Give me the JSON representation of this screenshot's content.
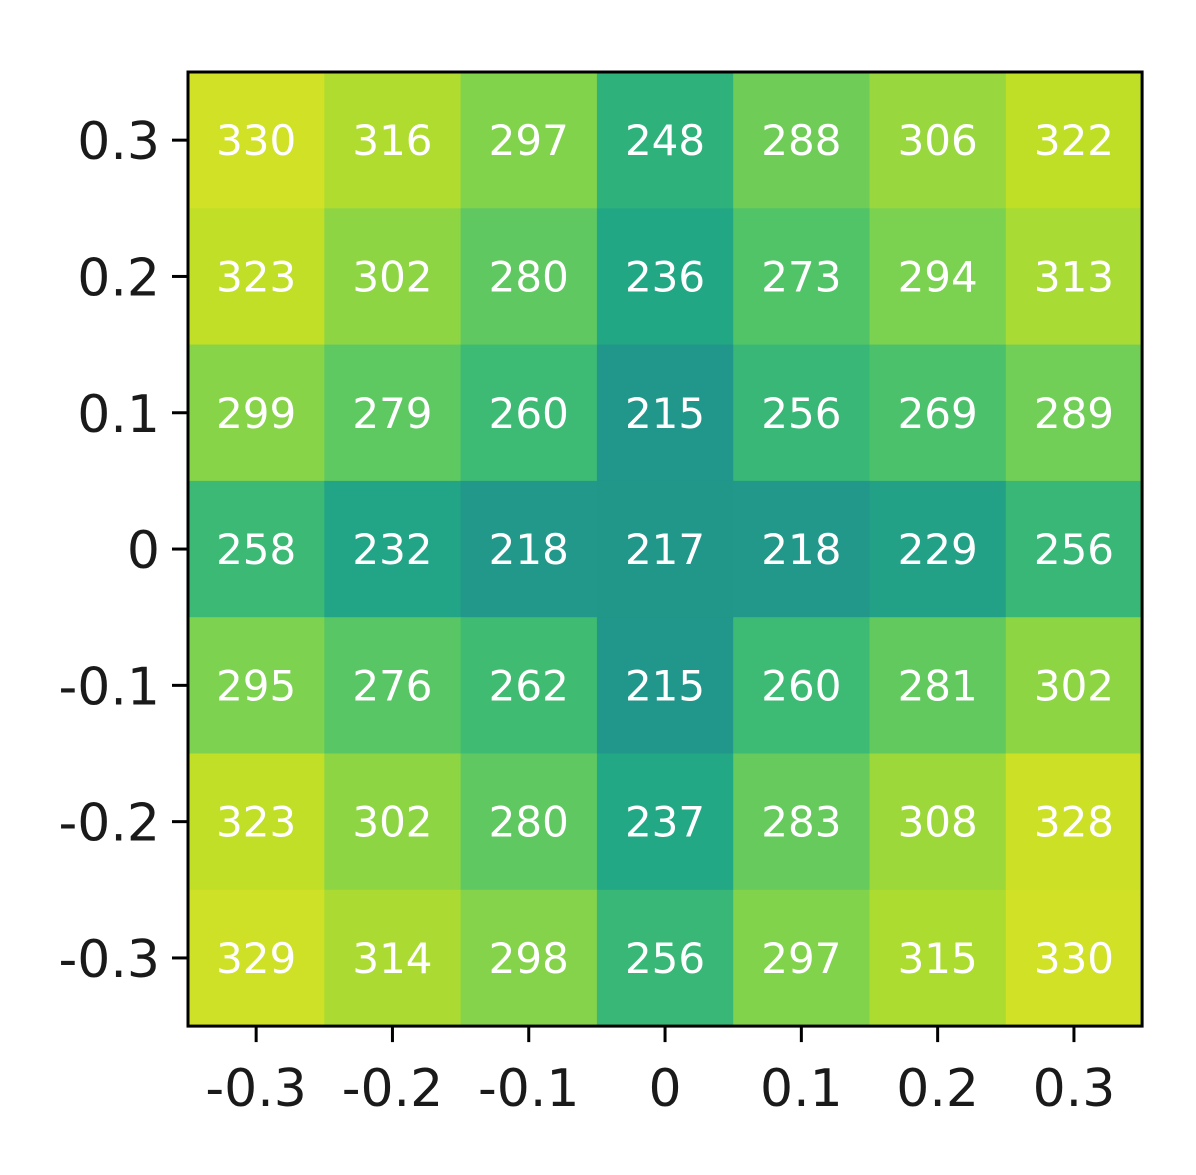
{
  "chart_data": {
    "type": "heatmap",
    "title": "",
    "xlabel": "",
    "ylabel": "",
    "x_ticks": [
      "-0.3",
      "-0.2",
      "-0.1",
      "0",
      "0.1",
      "0.2",
      "0.3"
    ],
    "y_ticks": [
      "0.3",
      "0.2",
      "0.1",
      "0",
      "-0.1",
      "-0.2",
      "-0.3"
    ],
    "x": [
      -0.3,
      -0.2,
      -0.1,
      0,
      0.1,
      0.2,
      0.3
    ],
    "y": [
      0.3,
      0.2,
      0.1,
      0,
      -0.1,
      -0.2,
      -0.3
    ],
    "values": [
      [
        330,
        316,
        297,
        248,
        288,
        306,
        322
      ],
      [
        323,
        302,
        280,
        236,
        273,
        294,
        313
      ],
      [
        299,
        279,
        260,
        215,
        256,
        269,
        289
      ],
      [
        258,
        232,
        218,
        217,
        218,
        229,
        256
      ],
      [
        295,
        276,
        262,
        215,
        260,
        281,
        302
      ],
      [
        323,
        302,
        280,
        237,
        283,
        308,
        328
      ],
      [
        329,
        314,
        298,
        256,
        297,
        315,
        330
      ]
    ],
    "colormap": "viridis",
    "color_range": [
      215,
      330
    ],
    "cell_text_color": "#ffffff",
    "grid": false,
    "legend": "none"
  }
}
